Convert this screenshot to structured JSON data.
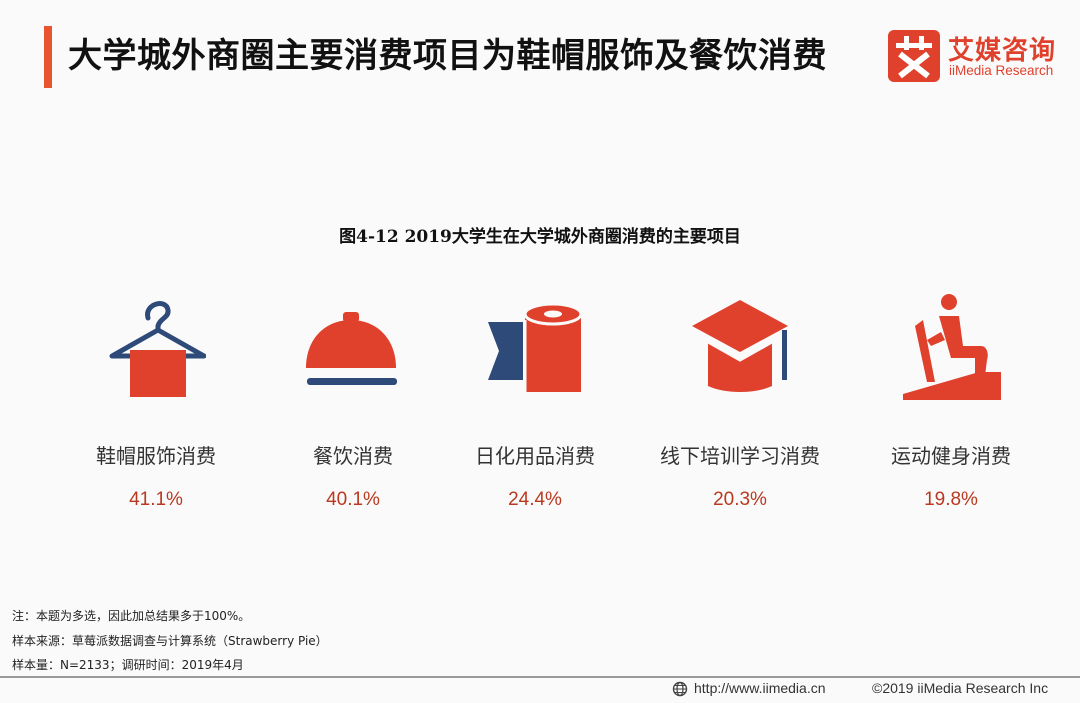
{
  "header": {
    "title": "大学城外商圈主要消费项目为鞋帽服饰及餐饮消费",
    "accent_color": "#e8542e"
  },
  "logo": {
    "mark_char": "艾",
    "name_cn": "艾媒咨询",
    "name_en": "iiMedia Research",
    "color": "#e0412c"
  },
  "chart_data": {
    "type": "table",
    "title": "图4-12 2019大学生在大学城外商圈消费的主要项目",
    "categories": [
      "鞋帽服饰消费",
      "餐饮消费",
      "日化用品消费",
      "线下培训学习消费",
      "运动健身消费"
    ],
    "values": [
      41.1,
      40.1,
      24.4,
      20.3,
      19.8
    ],
    "value_labels": [
      "41.1%",
      "40.1%",
      "24.4%",
      "20.3%",
      "19.8%"
    ],
    "icons": [
      "hanger-icon",
      "food-cloche-icon",
      "toilet-paper-icon",
      "graduation-cap-icon",
      "exercise-bike-icon"
    ],
    "unit": "%",
    "colors": {
      "red": "#e0412c",
      "blue": "#2e4a78",
      "value": "#b8391f"
    }
  },
  "notes": [
    "注：本题为多选，因此加总结果多于100%。",
    "样本来源：草莓派数据调查与计算系统（Strawberry Pie）",
    "样本量：N=2133；调研时间：2019年4月"
  ],
  "footer": {
    "url": "http://www.iimedia.cn",
    "copyright": "©2019  iiMedia Research  Inc"
  }
}
